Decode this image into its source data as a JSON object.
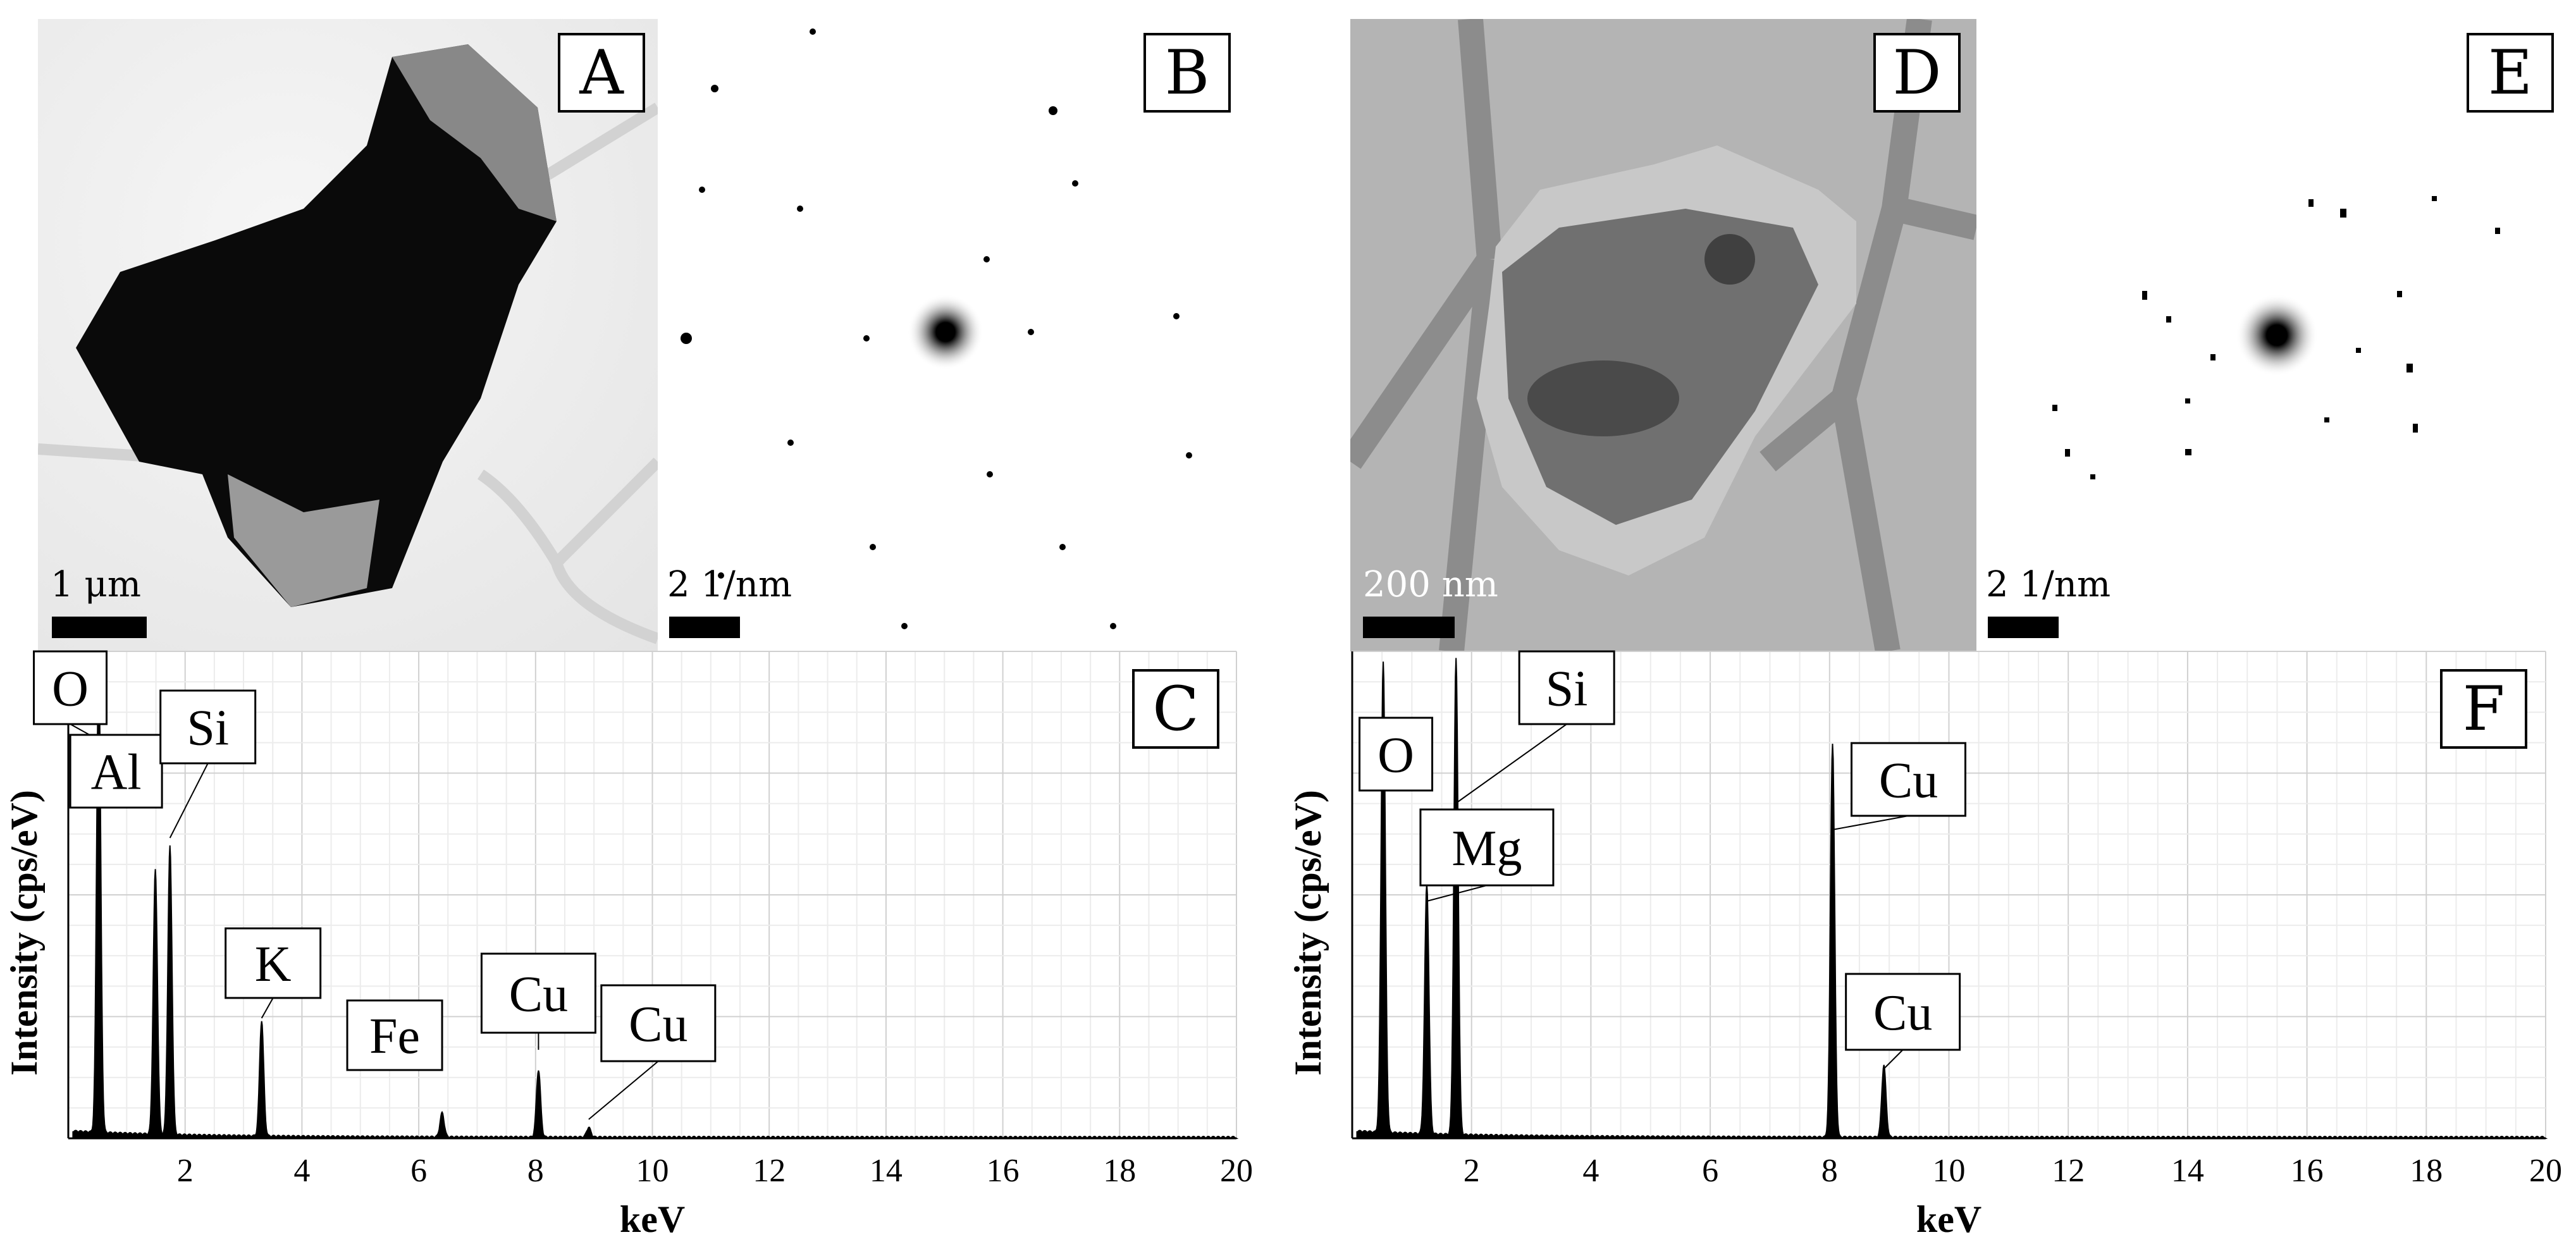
{
  "panels": {
    "A": {
      "label": "A",
      "scale_text": "1 μm"
    },
    "B": {
      "label": "B",
      "scale_text": "2 1/nm"
    },
    "C": {
      "label": "C"
    },
    "D": {
      "label": "D",
      "scale_text": "200 nm"
    },
    "E": {
      "label": "E",
      "scale_text": "2 1/nm"
    },
    "F": {
      "label": "F"
    }
  },
  "chart_data": [
    {
      "panel": "C",
      "type": "line",
      "title": "",
      "xlabel": "keV",
      "ylabel": "Intensity (cps/eV)",
      "xlim": [
        0,
        20
      ],
      "xticks": [
        "2",
        "4",
        "6",
        "8",
        "10",
        "12",
        "14",
        "16",
        "18",
        "20"
      ],
      "ylim": [
        0,
        1
      ],
      "grid": true,
      "peaks": [
        {
          "element": "O",
          "energy": 0.52,
          "height": 0.98
        },
        {
          "element": "Al",
          "energy": 1.49,
          "height": 0.55
        },
        {
          "element": "Si",
          "energy": 1.74,
          "height": 0.6
        },
        {
          "element": "K",
          "energy": 3.31,
          "height": 0.24
        },
        {
          "element": "Fe",
          "energy": 6.4,
          "height": 0.05
        },
        {
          "element": "Cu",
          "energy": 8.05,
          "height": 0.14
        },
        {
          "element": "Cu",
          "energy": 8.91,
          "height": 0.02
        }
      ]
    },
    {
      "panel": "F",
      "type": "line",
      "title": "",
      "xlabel": "keV",
      "ylabel": "Intensity (cps/eV)",
      "xlim": [
        0,
        20
      ],
      "xticks": [
        "2",
        "4",
        "6",
        "8",
        "10",
        "12",
        "14",
        "16",
        "18",
        "20"
      ],
      "ylim": [
        0,
        1
      ],
      "grid": true,
      "peaks": [
        {
          "element": "O",
          "energy": 0.52,
          "height": 0.98
        },
        {
          "element": "Mg",
          "energy": 1.25,
          "height": 0.52
        },
        {
          "element": "Si",
          "energy": 1.74,
          "height": 0.99
        },
        {
          "element": "Cu",
          "energy": 8.05,
          "height": 0.82
        },
        {
          "element": "Cu",
          "energy": 8.91,
          "height": 0.15
        }
      ]
    }
  ]
}
